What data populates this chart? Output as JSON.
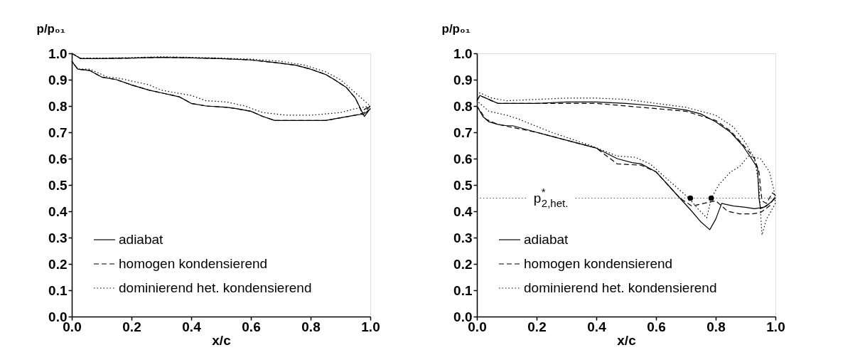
{
  "chart_data": [
    {
      "type": "line",
      "xlabel": "x/c",
      "ylabel": "p/p₀₁",
      "xlim": [
        0,
        1
      ],
      "ylim": [
        0,
        1
      ],
      "xticks": [
        {
          "value": 0,
          "label": "0.0"
        },
        {
          "value": 0.2,
          "label": "0.2"
        },
        {
          "value": 0.4,
          "label": "0.4"
        },
        {
          "value": 0.6,
          "label": "0.6"
        },
        {
          "value": 0.8,
          "label": "0.8"
        },
        {
          "value": 1,
          "label": "1.0"
        }
      ],
      "yticks": [
        {
          "value": 0,
          "label": "0.0"
        },
        {
          "value": 0.1,
          "label": "0.1"
        },
        {
          "value": 0.2,
          "label": "0.2"
        },
        {
          "value": 0.3,
          "label": "0.3"
        },
        {
          "value": 0.4,
          "label": "0.4"
        },
        {
          "value": 0.5,
          "label": "0.5"
        },
        {
          "value": 0.6,
          "label": "0.6"
        },
        {
          "value": 0.7,
          "label": "0.7"
        },
        {
          "value": 0.8,
          "label": "0.8"
        },
        {
          "value": 0.9,
          "label": "0.9"
        },
        {
          "value": 1,
          "label": "1.0"
        }
      ],
      "legend": "bottom left",
      "grid": false,
      "marker": "none",
      "series": [
        {
          "name": "adiabat",
          "color": "#000000",
          "line_style": "solid",
          "x": [
            0,
            0.03,
            0.1,
            0.2,
            0.3,
            0.4,
            0.5,
            0.6,
            0.68,
            0.75,
            0.8,
            0.85,
            0.88,
            0.92,
            0.95,
            0.98,
            1.0,
            0.98,
            0.95,
            0.9,
            0.85,
            0.75,
            0.68,
            0.64,
            0.6,
            0.55,
            0.52,
            0.45,
            0.4,
            0.36,
            0.3,
            0.26,
            0.2,
            0.15,
            0.1,
            0.06,
            0.02,
            0
          ],
          "values": [
            1.0,
            0.98,
            0.98,
            0.982,
            0.985,
            0.983,
            0.98,
            0.975,
            0.965,
            0.955,
            0.94,
            0.92,
            0.9,
            0.87,
            0.83,
            0.76,
            0.79,
            0.77,
            0.765,
            0.755,
            0.745,
            0.745,
            0.745,
            0.76,
            0.78,
            0.79,
            0.795,
            0.8,
            0.81,
            0.835,
            0.85,
            0.86,
            0.88,
            0.9,
            0.91,
            0.935,
            0.94,
            0.97
          ]
        },
        {
          "name": "homogen kondensierend",
          "color": "#000000",
          "line_style": "dashed",
          "x": [
            0,
            0.03,
            0.1,
            0.2,
            0.3,
            0.4,
            0.5,
            0.6,
            0.68,
            0.75,
            0.8,
            0.85,
            0.88,
            0.92,
            0.95,
            0.97,
            1.0,
            0.98,
            0.95,
            0.9,
            0.85,
            0.75,
            0.68,
            0.64,
            0.6,
            0.55,
            0.52,
            0.45,
            0.4,
            0.36,
            0.3,
            0.26,
            0.2,
            0.15,
            0.1,
            0.06,
            0.02,
            0
          ],
          "values": [
            1.0,
            0.98,
            0.98,
            0.982,
            0.985,
            0.983,
            0.98,
            0.975,
            0.965,
            0.955,
            0.94,
            0.92,
            0.9,
            0.87,
            0.83,
            0.78,
            0.8,
            0.775,
            0.765,
            0.755,
            0.745,
            0.745,
            0.745,
            0.76,
            0.78,
            0.79,
            0.795,
            0.8,
            0.81,
            0.835,
            0.85,
            0.86,
            0.88,
            0.9,
            0.91,
            0.935,
            0.94,
            0.97
          ]
        },
        {
          "name": "dominierend het. kondensierend",
          "color": "#000000",
          "line_style": "dotted",
          "x": [
            0,
            0.03,
            0.1,
            0.2,
            0.3,
            0.4,
            0.5,
            0.6,
            0.7,
            0.78,
            0.85,
            0.9,
            0.95,
            0.98,
            1.0,
            0.95,
            0.9,
            0.8,
            0.72,
            0.64,
            0.58,
            0.52,
            0.45,
            0.4,
            0.3,
            0.26,
            0.16,
            0.12,
            0.06,
            0.02,
            0
          ],
          "values": [
            1.0,
            0.982,
            0.982,
            0.984,
            0.987,
            0.985,
            0.982,
            0.978,
            0.97,
            0.955,
            0.93,
            0.9,
            0.85,
            0.82,
            0.8,
            0.79,
            0.775,
            0.765,
            0.765,
            0.775,
            0.8,
            0.815,
            0.82,
            0.84,
            0.86,
            0.88,
            0.905,
            0.91,
            0.94,
            0.94,
            0.97
          ]
        }
      ]
    },
    {
      "type": "line",
      "xlabel": "x/c",
      "ylabel": "p/p₀₁",
      "xlim": [
        0,
        1
      ],
      "ylim": [
        0,
        1
      ],
      "xticks": [
        {
          "value": 0,
          "label": "0.0"
        },
        {
          "value": 0.2,
          "label": "0.2"
        },
        {
          "value": 0.4,
          "label": "0.4"
        },
        {
          "value": 0.6,
          "label": "0.6"
        },
        {
          "value": 0.8,
          "label": "0.8"
        },
        {
          "value": 1,
          "label": "1.0"
        }
      ],
      "yticks": [
        {
          "value": 0,
          "label": "0.0"
        },
        {
          "value": 0.1,
          "label": "0.1"
        },
        {
          "value": 0.2,
          "label": "0.2"
        },
        {
          "value": 0.3,
          "label": "0.3"
        },
        {
          "value": 0.4,
          "label": "0.4"
        },
        {
          "value": 0.5,
          "label": "0.5"
        },
        {
          "value": 0.6,
          "label": "0.6"
        },
        {
          "value": 0.7,
          "label": "0.7"
        },
        {
          "value": 0.8,
          "label": "0.8"
        },
        {
          "value": 0.9,
          "label": "0.9"
        },
        {
          "value": 1,
          "label": "1.0"
        }
      ],
      "legend": "bottom left",
      "grid": false,
      "marker": "none",
      "ref_lines": [
        {
          "axis": "y",
          "value": 0.45,
          "label": "p$^{*}$$_{2,het.}$",
          "color": "#555555",
          "line_style": "dotted"
        }
      ],
      "series": [
        {
          "name": "adiabat",
          "color": "#000000",
          "line_style": "solid",
          "x": [
            0,
            0.01,
            0.05,
            0.07,
            0.2,
            0.3,
            0.4,
            0.5,
            0.6,
            0.7,
            0.75,
            0.8,
            0.85,
            0.89,
            0.92,
            0.94,
            0.945,
            0.95,
            0.97,
            0.99,
            1.0,
            0.98,
            0.96,
            0.93,
            0.9,
            0.86,
            0.82,
            0.8,
            0.78,
            0.75,
            0.72,
            0.68,
            0.64,
            0.6,
            0.55,
            0.52,
            0.47,
            0.4,
            0.3,
            0.2,
            0.12,
            0.1,
            0.07,
            0.04,
            0.02,
            0
          ],
          "values": [
            0.82,
            0.84,
            0.82,
            0.81,
            0.81,
            0.815,
            0.815,
            0.81,
            0.8,
            0.785,
            0.77,
            0.74,
            0.7,
            0.65,
            0.6,
            0.565,
            0.45,
            0.41,
            0.42,
            0.44,
            0.45,
            0.43,
            0.415,
            0.41,
            0.415,
            0.42,
            0.43,
            0.37,
            0.33,
            0.36,
            0.4,
            0.45,
            0.5,
            0.55,
            0.58,
            0.585,
            0.6,
            0.64,
            0.67,
            0.7,
            0.725,
            0.725,
            0.73,
            0.74,
            0.76,
            0.8
          ]
        },
        {
          "name": "homogen kondensierend",
          "color": "#000000",
          "line_style": "dashed",
          "x": [
            0,
            0.01,
            0.05,
            0.07,
            0.3,
            0.4,
            0.5,
            0.6,
            0.7,
            0.8,
            0.85,
            0.89,
            0.93,
            0.945,
            0.955,
            0.97,
            0.99,
            1.0,
            0.98,
            0.95,
            0.92,
            0.88,
            0.84,
            0.8,
            0.76,
            0.72,
            0.68,
            0.64,
            0.6,
            0.55,
            0.47,
            0.4,
            0.2,
            0.07,
            0.03,
            0
          ],
          "values": [
            0.82,
            0.84,
            0.82,
            0.81,
            0.81,
            0.81,
            0.8,
            0.79,
            0.78,
            0.745,
            0.705,
            0.655,
            0.6,
            0.55,
            0.44,
            0.43,
            0.47,
            0.46,
            0.42,
            0.395,
            0.39,
            0.39,
            0.4,
            0.44,
            0.43,
            0.42,
            0.45,
            0.5,
            0.55,
            0.575,
            0.58,
            0.64,
            0.7,
            0.73,
            0.75,
            0.8
          ]
        },
        {
          "name": "dominierend het. kondensierend",
          "color": "#000000",
          "line_style": "dotted",
          "x": [
            0,
            0.01,
            0.05,
            0.1,
            0.2,
            0.3,
            0.4,
            0.5,
            0.6,
            0.7,
            0.8,
            0.86,
            0.9,
            0.93,
            0.945,
            0.95,
            0.955,
            0.97,
            0.985,
            1.0,
            0.995,
            0.98,
            0.95,
            0.91,
            0.88,
            0.85,
            0.81,
            0.785,
            0.77,
            0.74,
            0.71,
            0.67,
            0.62,
            0.58,
            0.53,
            0.47,
            0.38,
            0.25,
            0.14,
            0.1,
            0.04,
            0
          ],
          "values": [
            0.84,
            0.85,
            0.83,
            0.82,
            0.825,
            0.83,
            0.83,
            0.825,
            0.81,
            0.795,
            0.765,
            0.72,
            0.66,
            0.6,
            0.5,
            0.4,
            0.31,
            0.37,
            0.4,
            0.43,
            0.48,
            0.55,
            0.6,
            0.61,
            0.57,
            0.55,
            0.5,
            0.45,
            0.375,
            0.41,
            0.45,
            0.49,
            0.54,
            0.58,
            0.605,
            0.61,
            0.65,
            0.7,
            0.75,
            0.765,
            0.78,
            0.82
          ]
        },
        {
          "type": "scatter",
          "color": "#000000",
          "marker": "circle",
          "x": [
            0.715,
            0.785
          ],
          "values": [
            0.45,
            0.45
          ]
        }
      ]
    }
  ]
}
